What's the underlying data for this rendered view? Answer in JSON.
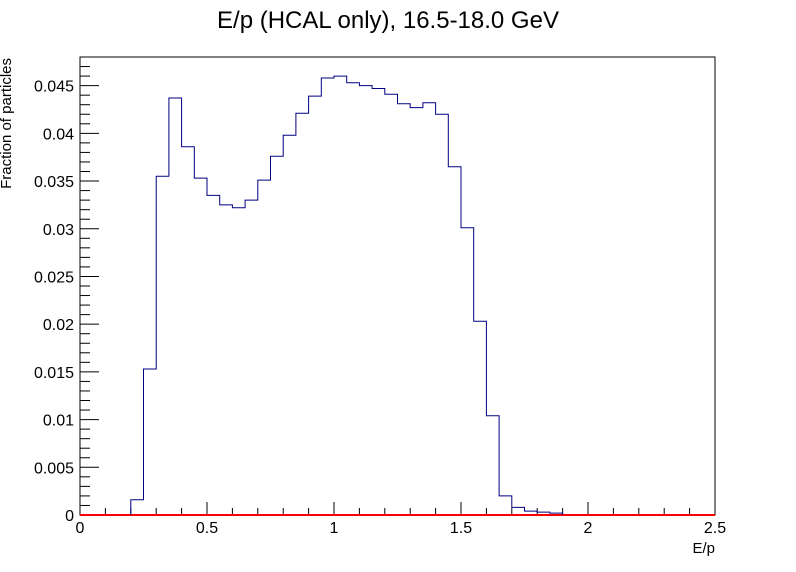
{
  "chart_data": {
    "type": "histogram",
    "title": "E/p (HCAL only), 16.5-18.0 GeV",
    "xlabel": "E/p",
    "ylabel": "Fraction of particles",
    "xlim": [
      0,
      2.5
    ],
    "ylim": [
      0,
      0.048
    ],
    "bin_width": 0.05,
    "x_ticks": [
      "0",
      "0.5",
      "1",
      "1.5",
      "2",
      "2.5"
    ],
    "y_ticks": [
      "0",
      "0.005",
      "0.01",
      "0.015",
      "0.02",
      "0.025",
      "0.03",
      "0.035",
      "0.04",
      "0.045"
    ],
    "grid": false,
    "series": [
      {
        "color": "#000080",
        "bin_edges": [
          0.2,
          0.25,
          0.3,
          0.35,
          0.4,
          0.45,
          0.5,
          0.55,
          0.6,
          0.65,
          0.7,
          0.75,
          0.8,
          0.85,
          0.9,
          0.95,
          1.0,
          1.05,
          1.1,
          1.15,
          1.2,
          1.25,
          1.3,
          1.35,
          1.4,
          1.45,
          1.5,
          1.55,
          1.6,
          1.65,
          1.7,
          1.75,
          1.8,
          1.85,
          1.9
        ],
        "values": [
          0.0016,
          0.0153,
          0.0355,
          0.0437,
          0.0386,
          0.0353,
          0.0335,
          0.0325,
          0.0322,
          0.033,
          0.0351,
          0.0376,
          0.0398,
          0.0421,
          0.0439,
          0.0458,
          0.046,
          0.0453,
          0.045,
          0.0447,
          0.0441,
          0.0431,
          0.0427,
          0.0432,
          0.042,
          0.0365,
          0.0301,
          0.0203,
          0.0104,
          0.002,
          0.0008,
          0.0004,
          0.0003,
          0.0002
        ]
      },
      {
        "color": "#ff0000",
        "x": [
          0,
          2.5
        ],
        "values": [
          0,
          0
        ]
      }
    ]
  }
}
